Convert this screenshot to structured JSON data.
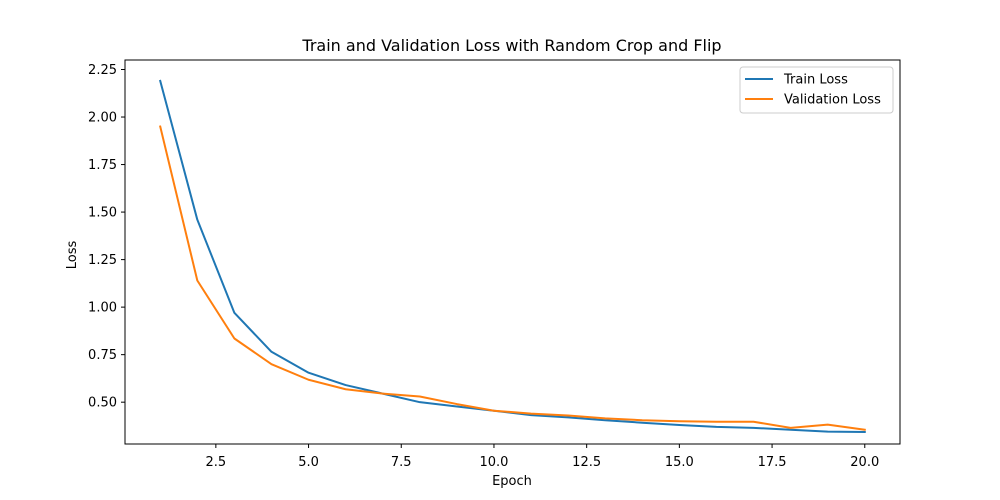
{
  "chart_data": {
    "type": "line",
    "title": "Train and Validation Loss with Random Crop and Flip",
    "xlabel": "Epoch",
    "ylabel": "Loss",
    "xlim": [
      0.05,
      20.95
    ],
    "ylim": [
      0.28,
      2.3
    ],
    "xticks": [
      2.5,
      5.0,
      7.5,
      10.0,
      12.5,
      15.0,
      17.5,
      20.0
    ],
    "xtick_labels": [
      "2.5",
      "5.0",
      "7.5",
      "10.0",
      "12.5",
      "15.0",
      "17.5",
      "20.0"
    ],
    "yticks": [
      0.5,
      0.75,
      1.0,
      1.25,
      1.5,
      1.75,
      2.0,
      2.25
    ],
    "ytick_labels": [
      "0.50",
      "0.75",
      "1.00",
      "1.25",
      "1.50",
      "1.75",
      "2.00",
      "2.25"
    ],
    "grid": false,
    "legend_position": "top-right",
    "x": [
      1,
      2,
      3,
      4,
      5,
      6,
      7,
      8,
      9,
      10,
      11,
      12,
      13,
      14,
      15,
      16,
      17,
      18,
      19,
      20
    ],
    "series": [
      {
        "name": "Train Loss",
        "color": "#1f77b4",
        "values": [
          2.19,
          1.46,
          0.97,
          0.765,
          0.655,
          0.59,
          0.545,
          0.5,
          0.477,
          0.455,
          0.432,
          0.42,
          0.405,
          0.392,
          0.38,
          0.37,
          0.365,
          0.355,
          0.345,
          0.343
        ]
      },
      {
        "name": "Validation Loss",
        "color": "#ff7f0e",
        "values": [
          1.95,
          1.14,
          0.835,
          0.7,
          0.618,
          0.568,
          0.545,
          0.53,
          0.49,
          0.455,
          0.44,
          0.43,
          0.415,
          0.405,
          0.4,
          0.397,
          0.397,
          0.365,
          0.382,
          0.355
        ]
      }
    ]
  }
}
